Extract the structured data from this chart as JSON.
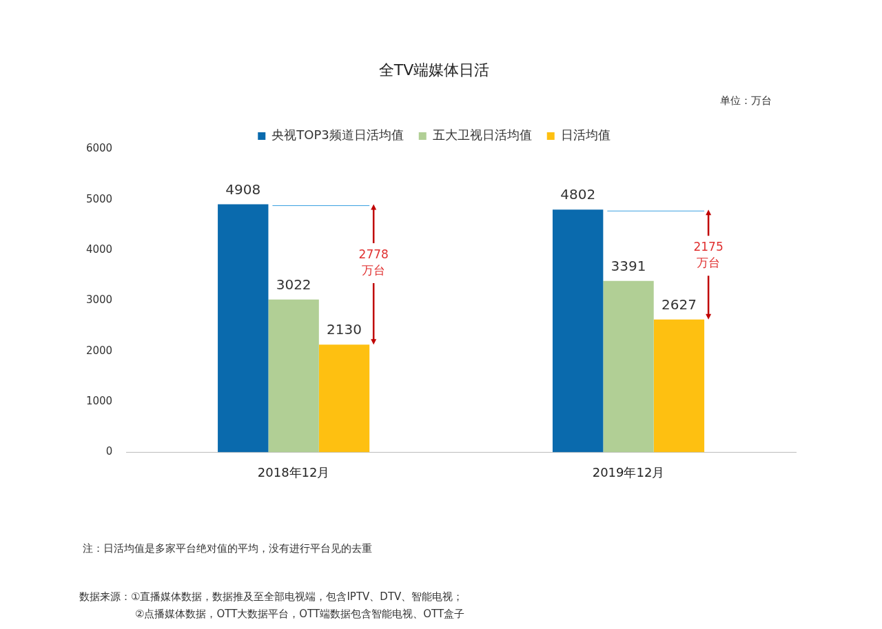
{
  "chart_data": {
    "type": "bar",
    "title": "全TV端媒体日活",
    "categories": [
      "2018年12月",
      "2019年12月"
    ],
    "series": [
      {
        "name": "央视TOP3频道日活均值",
        "color": "#0a6aad",
        "values": [
          4908,
          4802
        ]
      },
      {
        "name": "五大卫视日活均值",
        "color": "#b1cf95",
        "values": [
          3022,
          3391
        ]
      },
      {
        "name": "日活均值",
        "color": "#fec011",
        "values": [
          2130,
          2627
        ]
      }
    ],
    "ylim": [
      0,
      6000
    ],
    "yticks": [
      0,
      1000,
      2000,
      3000,
      4000,
      5000,
      6000
    ],
    "grid": false,
    "legend": "top",
    "data_labels": true,
    "annotations": [
      "单位：万台",
      "2778\n万台",
      "2175\n万台",
      "注：日活均值是多家平台绝对值的平均，没有进行平台见的去重",
      "数据来源：①直播媒体数据，数据推及至全部电视端，包含IPTV、DTV、智能电视；",
      "②点播媒体数据，OTT大数据平台，OTT端数据包含智能电视、OTT盒子"
    ]
  }
}
